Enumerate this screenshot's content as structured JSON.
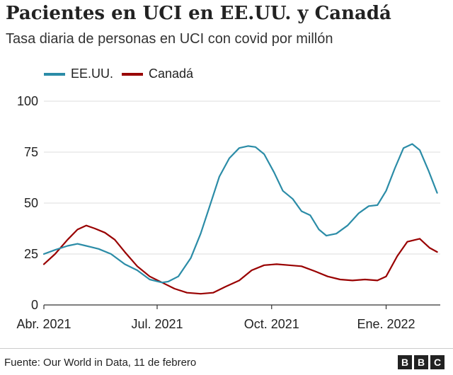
{
  "chart_data": {
    "type": "line",
    "title": "Pacientes en UCI en EE.UU. y Canadá",
    "subtitle": "Tasa diaria de personas en UCI con covid por millón",
    "xlabel": "",
    "ylabel": "",
    "ylim": [
      0,
      100
    ],
    "yticks": [
      "0",
      "25",
      "50",
      "75",
      "100"
    ],
    "xticks": [
      {
        "label": "Abr. 2021",
        "date": "2021-04-01"
      },
      {
        "label": "Jul. 2021",
        "date": "2021-07-01"
      },
      {
        "label": "Oct. 2021",
        "date": "2021-10-01"
      },
      {
        "label": "Ene. 2022",
        "date": "2022-01-01"
      }
    ],
    "grid": true,
    "legend_position": "top-left",
    "series": [
      {
        "name": "EE.UU.",
        "color": "#2b8ca7",
        "points": [
          [
            "2021-04-01",
            25
          ],
          [
            "2021-04-10",
            27
          ],
          [
            "2021-04-20",
            29
          ],
          [
            "2021-04-28",
            30
          ],
          [
            "2021-05-05",
            29
          ],
          [
            "2021-05-15",
            27.5
          ],
          [
            "2021-05-25",
            25
          ],
          [
            "2021-06-05",
            20
          ],
          [
            "2021-06-15",
            17
          ],
          [
            "2021-06-25",
            12.5
          ],
          [
            "2021-07-05",
            11
          ],
          [
            "2021-07-10",
            11.5
          ],
          [
            "2021-07-18",
            14
          ],
          [
            "2021-07-28",
            23
          ],
          [
            "2021-08-05",
            35
          ],
          [
            "2021-08-12",
            48
          ],
          [
            "2021-08-20",
            63
          ],
          [
            "2021-08-28",
            72
          ],
          [
            "2021-09-05",
            77
          ],
          [
            "2021-09-12",
            78
          ],
          [
            "2021-09-18",
            77.5
          ],
          [
            "2021-09-25",
            74
          ],
          [
            "2021-10-03",
            65
          ],
          [
            "2021-10-10",
            56
          ],
          [
            "2021-10-18",
            52
          ],
          [
            "2021-10-25",
            46
          ],
          [
            "2021-11-01",
            44
          ],
          [
            "2021-11-08",
            37
          ],
          [
            "2021-11-14",
            34
          ],
          [
            "2021-11-22",
            35
          ],
          [
            "2021-12-01",
            39
          ],
          [
            "2021-12-10",
            45
          ],
          [
            "2021-12-18",
            48.5
          ],
          [
            "2021-12-25",
            49
          ],
          [
            "2022-01-01",
            56
          ],
          [
            "2022-01-08",
            67
          ],
          [
            "2022-01-15",
            77
          ],
          [
            "2022-01-22",
            79
          ],
          [
            "2022-01-28",
            76
          ],
          [
            "2022-02-04",
            66
          ],
          [
            "2022-02-11",
            55
          ]
        ]
      },
      {
        "name": "Canadá",
        "color": "#990000",
        "points": [
          [
            "2021-04-01",
            20
          ],
          [
            "2021-04-10",
            25
          ],
          [
            "2021-04-20",
            32
          ],
          [
            "2021-04-28",
            37
          ],
          [
            "2021-05-05",
            39
          ],
          [
            "2021-05-12",
            37.5
          ],
          [
            "2021-05-20",
            35.5
          ],
          [
            "2021-05-28",
            32
          ],
          [
            "2021-06-05",
            26
          ],
          [
            "2021-06-15",
            19
          ],
          [
            "2021-06-25",
            14
          ],
          [
            "2021-07-05",
            11
          ],
          [
            "2021-07-15",
            8
          ],
          [
            "2021-07-25",
            6
          ],
          [
            "2021-08-05",
            5.5
          ],
          [
            "2021-08-15",
            6
          ],
          [
            "2021-08-25",
            9
          ],
          [
            "2021-09-05",
            12
          ],
          [
            "2021-09-15",
            17
          ],
          [
            "2021-09-25",
            19.5
          ],
          [
            "2021-10-05",
            20
          ],
          [
            "2021-10-15",
            19.5
          ],
          [
            "2021-10-25",
            19
          ],
          [
            "2021-11-05",
            16.5
          ],
          [
            "2021-11-15",
            14
          ],
          [
            "2021-11-25",
            12.5
          ],
          [
            "2021-12-05",
            12
          ],
          [
            "2021-12-15",
            12.5
          ],
          [
            "2021-12-25",
            12
          ],
          [
            "2022-01-01",
            14
          ],
          [
            "2022-01-10",
            24
          ],
          [
            "2022-01-18",
            31
          ],
          [
            "2022-01-28",
            32.5
          ],
          [
            "2022-02-05",
            28
          ],
          [
            "2022-02-11",
            26
          ]
        ]
      }
    ]
  },
  "source": "Fuente: Our World in Data, 11 de febrero",
  "logo": {
    "letters": [
      "B",
      "B",
      "C"
    ]
  }
}
